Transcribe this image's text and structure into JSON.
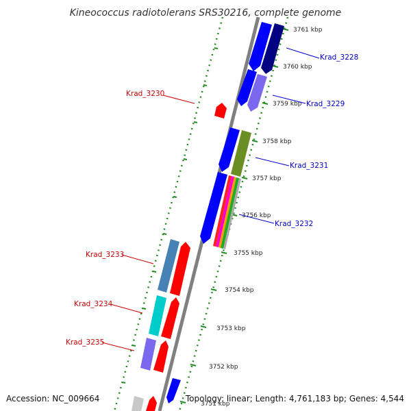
{
  "title": "Kineococcus radiotolerans SRS30216, complete genome",
  "accession": "Accession: NC_009664",
  "topology": "Topology: linear; Length: 4,761,183 bp; Genes: 4,544",
  "ticks": [
    "3761 kbp",
    "3760 kbp",
    "3759 kbp",
    "3758 kbp",
    "3757 kbp",
    "3756 kbp",
    "3755 kbp",
    "3754 kbp",
    "3753 kbp",
    "3752 kbp",
    "3751 kbp"
  ],
  "genes": [
    {
      "label": "Krad_3228",
      "color": "#0000cc"
    },
    {
      "label": "Krad_3229",
      "color": "#0000cc"
    },
    {
      "label": "Krad_3230",
      "color": "#cc0000"
    },
    {
      "label": "Krad_3231",
      "color": "#0000cc"
    },
    {
      "label": "Krad_3232",
      "color": "#0000cc"
    },
    {
      "label": "Krad_3233",
      "color": "#cc0000"
    },
    {
      "label": "Krad_3234",
      "color": "#cc0000"
    },
    {
      "label": "Krad_3235",
      "color": "#cc0000"
    }
  ],
  "colors": {
    "forward": "#ff0000",
    "reverse": "#0000ff",
    "navy": "#000080",
    "slate": "#7b68ee",
    "olive": "#6b8e23",
    "steel": "#4682b4",
    "cyan": "#00cccc",
    "grey": "#c0c0c0",
    "dots": "#228b22",
    "backbone": "#808080"
  }
}
